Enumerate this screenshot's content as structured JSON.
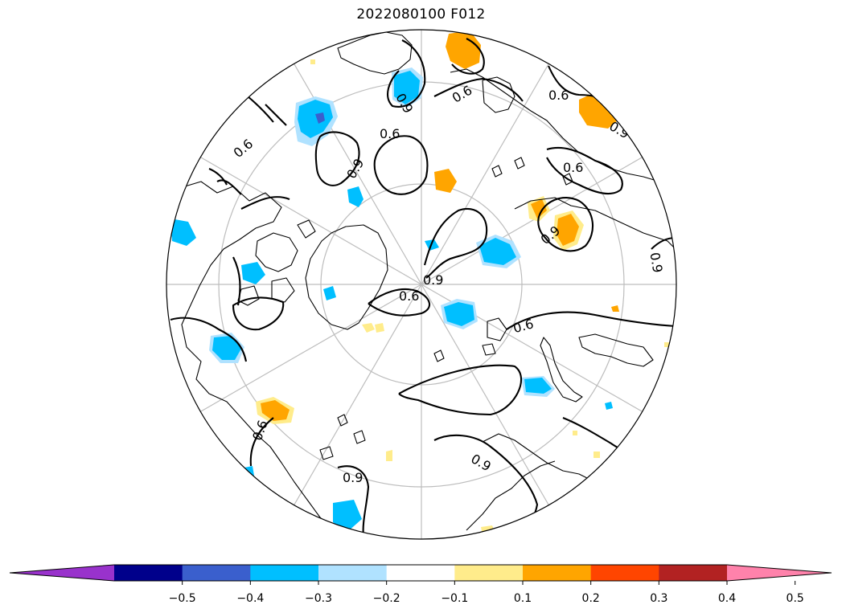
{
  "title": "2022080100 F012",
  "map": {
    "projection": "north-polar-stereographic",
    "graticule": "grey",
    "coastlines": "black",
    "shading_field": "anomaly (blue negative, orange positive)",
    "contour_levels": [
      "0.6",
      "0.9"
    ]
  },
  "contour_labels": [
    {
      "text": "0.6"
    },
    {
      "text": "0.6"
    },
    {
      "text": "0.9"
    },
    {
      "text": "0.6"
    },
    {
      "text": "0.9"
    },
    {
      "text": "0.6"
    },
    {
      "text": "0.9"
    },
    {
      "text": "0.6"
    },
    {
      "text": "0.9"
    },
    {
      "text": "0.6"
    },
    {
      "text": "0.9"
    },
    {
      "text": "0.6"
    },
    {
      "text": "0.6"
    },
    {
      "text": "0.9"
    },
    {
      "text": "0.9"
    },
    {
      "text": "0.9"
    }
  ],
  "colorbar": {
    "extend": "both",
    "bins": [
      {
        "color": "#9932CC"
      },
      {
        "color": "#00008B"
      },
      {
        "color": "#3A5FCD"
      },
      {
        "color": "#00BFFF"
      },
      {
        "color": "#B0E2FF"
      },
      {
        "color": "#FFFFFF"
      },
      {
        "color": "#FFEC8B"
      },
      {
        "color": "#FFA500"
      },
      {
        "color": "#FF4500"
      },
      {
        "color": "#B22222"
      },
      {
        "color": "#FF82AB"
      }
    ],
    "ticks": [
      "−0.5",
      "−0.4",
      "−0.3",
      "−0.2",
      "−0.1",
      "0.1",
      "0.2",
      "0.3",
      "0.4",
      "0.5"
    ]
  }
}
